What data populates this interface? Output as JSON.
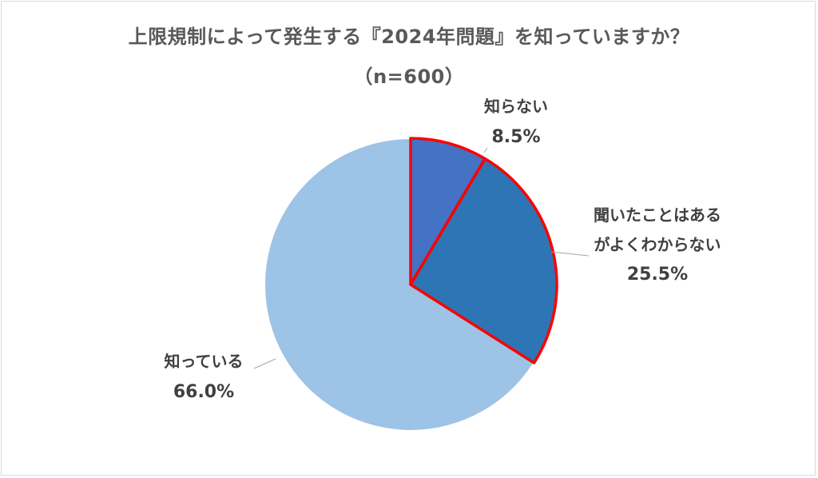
{
  "chart_data": {
    "type": "pie",
    "title": "上限規制によって発生する『2024年問題』を知っていますか？",
    "subtitle": "（n=600）",
    "slices": [
      {
        "label_lines": [
          "知らない"
        ],
        "value_label": "8.5%",
        "value": 8.5,
        "color": "#4472c4",
        "highlighted": true
      },
      {
        "label_lines": [
          "聞いたことはある",
          "がよくわからない"
        ],
        "value_label": "25.5%",
        "value": 25.5,
        "color": "#2e75b6",
        "highlighted": true
      },
      {
        "label_lines": [
          "知っている"
        ],
        "value_label": "66.0%",
        "value": 66.0,
        "color": "#9dc3e6",
        "highlighted": false
      }
    ],
    "highlight_color": "#ff0000",
    "legend": "none",
    "data_labels": "outside"
  }
}
